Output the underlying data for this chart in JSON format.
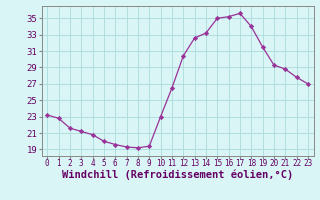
{
  "x": [
    0,
    1,
    2,
    3,
    4,
    5,
    6,
    7,
    8,
    9,
    10,
    11,
    12,
    13,
    14,
    15,
    16,
    17,
    18,
    19,
    20,
    21,
    22,
    23
  ],
  "y": [
    23.2,
    22.8,
    21.6,
    21.2,
    20.8,
    20.0,
    19.6,
    19.3,
    19.2,
    19.4,
    23.0,
    26.5,
    30.4,
    32.6,
    33.2,
    35.0,
    35.2,
    35.6,
    34.0,
    31.5,
    29.3,
    28.8,
    27.8,
    27.0
  ],
  "line_color": "#993399",
  "marker": "D",
  "marker_size": 2.2,
  "bg_color": "#d9f5f5",
  "grid_color": "#b0dede",
  "xlabel": "Windchill (Refroidissement éolien,°C)",
  "xlabel_fontsize": 7.5,
  "ytick_labels": [
    "19",
    "21",
    "23",
    "25",
    "27",
    "29",
    "31",
    "33",
    "35"
  ],
  "ytick_values": [
    19,
    21,
    23,
    25,
    27,
    29,
    31,
    33,
    35
  ],
  "ylim": [
    18.2,
    36.5
  ],
  "xlim": [
    -0.5,
    23.5
  ],
  "xtick_fontsize": 5.5,
  "ytick_fontsize": 6.5
}
